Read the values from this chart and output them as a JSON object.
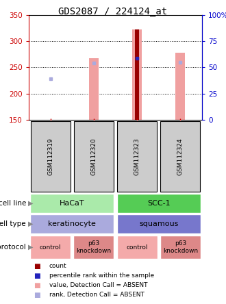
{
  "title": "GDS2087 / 224124_at",
  "samples": [
    "GSM112319",
    "GSM112320",
    "GSM112323",
    "GSM112324"
  ],
  "ylim": [
    150,
    350
  ],
  "yticks_left": [
    150,
    200,
    250,
    300,
    350
  ],
  "yright_labels": [
    "0",
    "25",
    "50",
    "75",
    "100%"
  ],
  "bar_values": [
    null,
    268,
    323,
    278
  ],
  "bar_color": "#F0A0A0",
  "count_bar_val": 323,
  "count_bar_idx": 2,
  "count_color": "#990000",
  "rank_dots": [
    228,
    258,
    268,
    260
  ],
  "rank_dot_color_absent": "#AAAADD",
  "rank_dot_color_present": "#2222BB",
  "rank_dot_present_idx": 2,
  "cell_line_labels": [
    "HaCaT",
    "SCC-1"
  ],
  "cell_line_colors": [
    "#AAEAAA",
    "#55CC55"
  ],
  "cell_type_labels": [
    "keratinocyte",
    "squamous"
  ],
  "cell_type_colors": [
    "#AAAADD",
    "#7777CC"
  ],
  "protocol_labels": [
    "control",
    "p63\nknockdown",
    "control",
    "p63\nknockdown"
  ],
  "protocol_colors": [
    "#F4AAAA",
    "#DD8888",
    "#F4AAAA",
    "#DD8888"
  ],
  "legend_colors": [
    "#990000",
    "#2222BB",
    "#F0A0A0",
    "#AAAADD"
  ],
  "legend_labels": [
    "count",
    "percentile rank within the sample",
    "value, Detection Call = ABSENT",
    "rank, Detection Call = ABSENT"
  ],
  "title_fontsize": 10,
  "axis_color_left": "#CC0000",
  "axis_color_right": "#0000CC"
}
